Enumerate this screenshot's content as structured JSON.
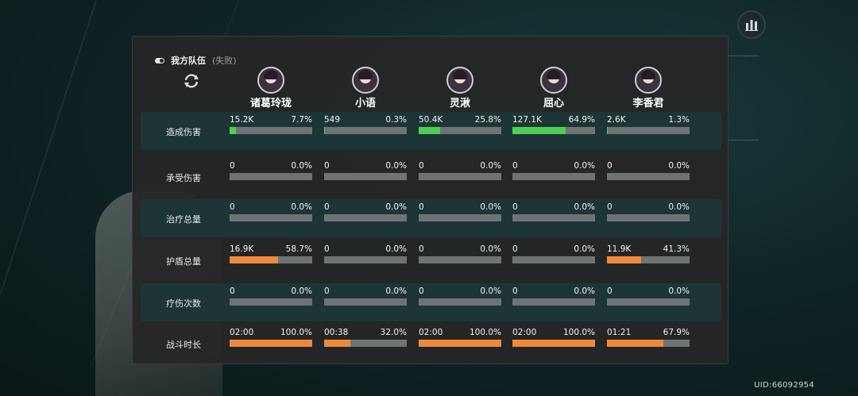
{
  "stats_icon": "bar-chart-icon",
  "uid": "UID:66092954",
  "header": {
    "title": "我方队伍",
    "status": "(失败)"
  },
  "refresh_icon": "refresh-icon",
  "colors": {
    "damage": "#4ecf55",
    "other": "#ef8a3c",
    "band": "#1d3536"
  },
  "members": [
    {
      "name": "诸葛玲珑"
    },
    {
      "name": "小语"
    },
    {
      "name": "灵湫"
    },
    {
      "name": "屈心"
    },
    {
      "name": "李香君"
    }
  ],
  "rows": [
    {
      "label": "造成伤害",
      "color": "green",
      "cells": [
        {
          "value": "15.2K",
          "pct": "7.7%",
          "fill": 0.077
        },
        {
          "value": "549",
          "pct": "0.3%",
          "fill": 0.003
        },
        {
          "value": "50.4K",
          "pct": "25.8%",
          "fill": 0.258
        },
        {
          "value": "127.1K",
          "pct": "64.9%",
          "fill": 0.649
        },
        {
          "value": "2.6K",
          "pct": "1.3%",
          "fill": 0.013
        }
      ]
    },
    {
      "label": "承受伤害",
      "color": "orange",
      "cells": [
        {
          "value": "0",
          "pct": "0.0%",
          "fill": 0
        },
        {
          "value": "0",
          "pct": "0.0%",
          "fill": 0
        },
        {
          "value": "0",
          "pct": "0.0%",
          "fill": 0
        },
        {
          "value": "0",
          "pct": "0.0%",
          "fill": 0
        },
        {
          "value": "0",
          "pct": "0.0%",
          "fill": 0
        }
      ]
    },
    {
      "label": "治疗总量",
      "color": "orange",
      "cells": [
        {
          "value": "0",
          "pct": "0.0%",
          "fill": 0
        },
        {
          "value": "0",
          "pct": "0.0%",
          "fill": 0
        },
        {
          "value": "0",
          "pct": "0.0%",
          "fill": 0
        },
        {
          "value": "0",
          "pct": "0.0%",
          "fill": 0
        },
        {
          "value": "0",
          "pct": "0.0%",
          "fill": 0
        }
      ]
    },
    {
      "label": "护盾总量",
      "color": "orange",
      "cells": [
        {
          "value": "16.9K",
          "pct": "58.7%",
          "fill": 0.587
        },
        {
          "value": "0",
          "pct": "0.0%",
          "fill": 0
        },
        {
          "value": "0",
          "pct": "0.0%",
          "fill": 0
        },
        {
          "value": "0",
          "pct": "0.0%",
          "fill": 0
        },
        {
          "value": "11.9K",
          "pct": "41.3%",
          "fill": 0.413
        }
      ]
    },
    {
      "label": "疗伤次数",
      "color": "orange",
      "cells": [
        {
          "value": "0",
          "pct": "0.0%",
          "fill": 0
        },
        {
          "value": "0",
          "pct": "0.0%",
          "fill": 0
        },
        {
          "value": "0",
          "pct": "0.0%",
          "fill": 0
        },
        {
          "value": "0",
          "pct": "0.0%",
          "fill": 0
        },
        {
          "value": "0",
          "pct": "0.0%",
          "fill": 0
        }
      ]
    },
    {
      "label": "战斗时长",
      "color": "orange",
      "cells": [
        {
          "value": "02:00",
          "pct": "100.0%",
          "fill": 1.0
        },
        {
          "value": "00:38",
          "pct": "32.0%",
          "fill": 0.32
        },
        {
          "value": "02:00",
          "pct": "100.0%",
          "fill": 1.0
        },
        {
          "value": "02:00",
          "pct": "100.0%",
          "fill": 1.0
        },
        {
          "value": "01:21",
          "pct": "67.9%",
          "fill": 0.679
        }
      ]
    }
  ]
}
